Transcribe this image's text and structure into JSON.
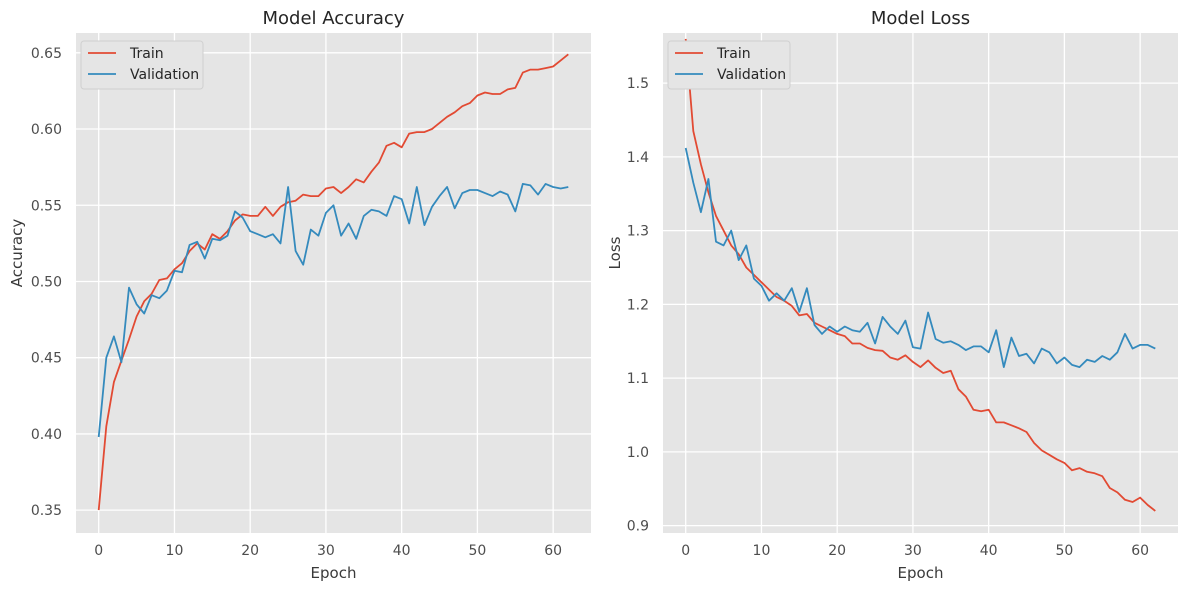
{
  "colors": {
    "train": "#E24A33",
    "validation": "#348ABD",
    "plot_bg": "#E5E5E5",
    "grid": "#FFFFFF"
  },
  "chart_data": [
    {
      "type": "line",
      "title": "Model Accuracy",
      "xlabel": "Epoch",
      "ylabel": "Accuracy",
      "xlim": [
        -3,
        65
      ],
      "ylim": [
        0.335,
        0.663
      ],
      "xticks": [
        0,
        10,
        20,
        30,
        40,
        50,
        60
      ],
      "yticks": [
        0.35,
        0.4,
        0.45,
        0.5,
        0.55,
        0.6,
        0.65
      ],
      "ytick_labels": [
        "0.35",
        "0.40",
        "0.45",
        "0.50",
        "0.55",
        "0.60",
        "0.65"
      ],
      "grid": true,
      "legend": "top-left",
      "series": [
        {
          "name": "Train",
          "color_key": "train",
          "values": [
            0.35,
            0.405,
            0.434,
            0.448,
            0.462,
            0.477,
            0.487,
            0.492,
            0.501,
            0.502,
            0.508,
            0.512,
            0.52,
            0.525,
            0.521,
            0.531,
            0.528,
            0.533,
            0.54,
            0.544,
            0.543,
            0.543,
            0.549,
            0.543,
            0.549,
            0.552,
            0.553,
            0.557,
            0.556,
            0.556,
            0.561,
            0.562,
            0.558,
            0.562,
            0.567,
            0.565,
            0.572,
            0.578,
            0.589,
            0.591,
            0.588,
            0.597,
            0.598,
            0.598,
            0.6,
            0.604,
            0.608,
            0.611,
            0.615,
            0.617,
            0.622,
            0.624,
            0.623,
            0.623,
            0.626,
            0.627,
            0.637,
            0.639,
            0.639,
            0.64,
            0.641,
            0.645,
            0.649
          ]
        },
        {
          "name": "Validation",
          "color_key": "validation",
          "values": [
            0.398,
            0.45,
            0.464,
            0.447,
            0.496,
            0.485,
            0.479,
            0.491,
            0.489,
            0.494,
            0.507,
            0.506,
            0.524,
            0.526,
            0.515,
            0.528,
            0.527,
            0.53,
            0.546,
            0.542,
            0.533,
            0.531,
            0.529,
            0.531,
            0.525,
            0.562,
            0.52,
            0.511,
            0.534,
            0.53,
            0.545,
            0.55,
            0.53,
            0.538,
            0.528,
            0.543,
            0.547,
            0.546,
            0.543,
            0.556,
            0.554,
            0.538,
            0.562,
            0.537,
            0.549,
            0.556,
            0.562,
            0.548,
            0.558,
            0.56,
            0.56,
            0.558,
            0.556,
            0.559,
            0.557,
            0.546,
            0.564,
            0.563,
            0.557,
            0.564,
            0.562,
            0.561,
            0.562
          ]
        }
      ]
    },
    {
      "type": "line",
      "title": "Model Loss",
      "xlabel": "Epoch",
      "ylabel": "Loss",
      "xlim": [
        -3,
        65
      ],
      "ylim": [
        0.89,
        1.568
      ],
      "xticks": [
        0,
        10,
        20,
        30,
        40,
        50,
        60
      ],
      "yticks": [
        0.9,
        1.0,
        1.1,
        1.2,
        1.3,
        1.4,
        1.5
      ],
      "ytick_labels": [
        "0.9",
        "1.0",
        "1.1",
        "1.2",
        "1.3",
        "1.4",
        "1.5"
      ],
      "grid": true,
      "legend": "top-left",
      "series": [
        {
          "name": "Train",
          "color_key": "train",
          "values": [
            1.56,
            1.435,
            1.39,
            1.352,
            1.32,
            1.3,
            1.28,
            1.268,
            1.25,
            1.24,
            1.23,
            1.22,
            1.21,
            1.205,
            1.198,
            1.185,
            1.187,
            1.175,
            1.17,
            1.165,
            1.16,
            1.157,
            1.147,
            1.147,
            1.141,
            1.138,
            1.137,
            1.128,
            1.125,
            1.131,
            1.122,
            1.115,
            1.124,
            1.114,
            1.107,
            1.11,
            1.085,
            1.075,
            1.057,
            1.055,
            1.057,
            1.04,
            1.04,
            1.036,
            1.032,
            1.027,
            1.012,
            1.002,
            0.996,
            0.99,
            0.985,
            0.975,
            0.978,
            0.973,
            0.971,
            0.967,
            0.951,
            0.945,
            0.935,
            0.932,
            0.938,
            0.928,
            0.92
          ]
        },
        {
          "name": "Validation",
          "color_key": "validation",
          "values": [
            1.412,
            1.365,
            1.325,
            1.37,
            1.285,
            1.28,
            1.3,
            1.26,
            1.28,
            1.235,
            1.225,
            1.205,
            1.215,
            1.205,
            1.222,
            1.19,
            1.222,
            1.172,
            1.16,
            1.17,
            1.163,
            1.17,
            1.165,
            1.163,
            1.175,
            1.147,
            1.183,
            1.17,
            1.16,
            1.178,
            1.142,
            1.14,
            1.189,
            1.153,
            1.148,
            1.15,
            1.145,
            1.138,
            1.143,
            1.143,
            1.135,
            1.165,
            1.115,
            1.155,
            1.13,
            1.133,
            1.12,
            1.14,
            1.135,
            1.12,
            1.128,
            1.118,
            1.115,
            1.125,
            1.122,
            1.13,
            1.125,
            1.135,
            1.16,
            1.14,
            1.145,
            1.145,
            1.14
          ]
        }
      ]
    }
  ]
}
